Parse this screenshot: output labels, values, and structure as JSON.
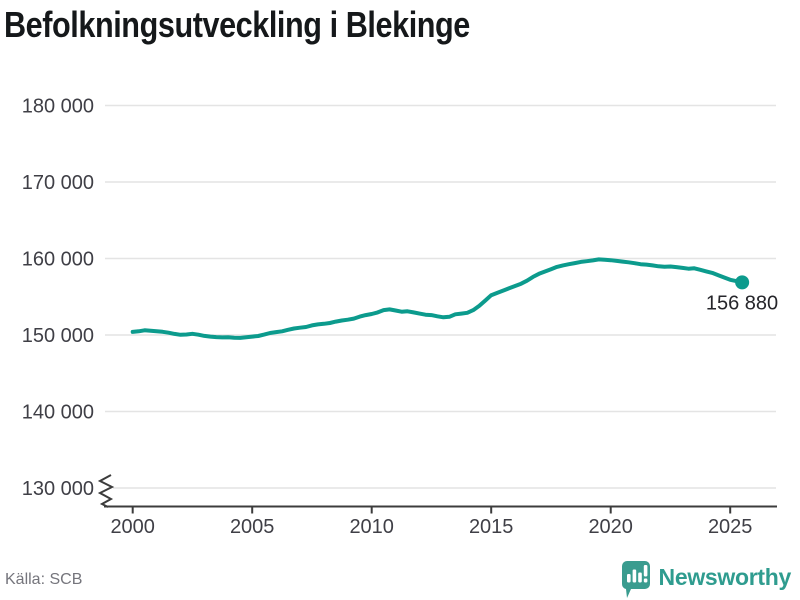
{
  "title": "Befolkningsutveckling i Blekinge",
  "source": "Källa: SCB",
  "brand": {
    "name": "Newsworthy",
    "color": "#379c8f"
  },
  "chart_data": {
    "type": "line",
    "title": "Befolkningsutveckling i Blekinge",
    "xlabel": "",
    "ylabel": "",
    "grid": "horizontal",
    "axis_break": true,
    "line_color": "#0c9b8d",
    "x_start": 2000,
    "x_step_years": 0.25,
    "x_end": 2025.5,
    "x_ticks": [
      2000,
      2005,
      2010,
      2015,
      2020,
      2025
    ],
    "x_tick_labels": [
      "2000",
      "2005",
      "2010",
      "2015",
      "2020",
      "2025"
    ],
    "y_ticks": [
      130000,
      140000,
      150000,
      160000,
      170000,
      180000
    ],
    "y_tick_labels": [
      "130 000",
      "140 000",
      "150 000",
      "160 000",
      "170 000",
      "180 000"
    ],
    "ylim": [
      130000,
      183000
    ],
    "end_label": "156 880",
    "last_value": 156880,
    "values": [
      150400,
      150480,
      150620,
      150560,
      150480,
      150420,
      150300,
      150150,
      150030,
      150070,
      150160,
      150040,
      149880,
      149790,
      149730,
      149680,
      149710,
      149650,
      149620,
      149700,
      149790,
      149870,
      150050,
      150260,
      150380,
      150480,
      150680,
      150850,
      150950,
      151050,
      151250,
      151380,
      151470,
      151570,
      151750,
      151900,
      152000,
      152150,
      152400,
      152600,
      152750,
      152950,
      153250,
      153350,
      153200,
      153050,
      153100,
      152950,
      152800,
      152650,
      152600,
      152450,
      152320,
      152380,
      152700,
      152800,
      152900,
      153250,
      153800,
      154500,
      155200,
      155500,
      155800,
      156100,
      156400,
      156700,
      157100,
      157600,
      158000,
      158300,
      158600,
      158900,
      159100,
      159250,
      159400,
      159550,
      159650,
      159750,
      159880,
      159830,
      159780,
      159680,
      159600,
      159500,
      159380,
      159250,
      159200,
      159100,
      158980,
      158920,
      158950,
      158870,
      158770,
      158670,
      158720,
      158520,
      158320,
      158120,
      157820,
      157520,
      157220,
      157050,
      156880
    ]
  }
}
